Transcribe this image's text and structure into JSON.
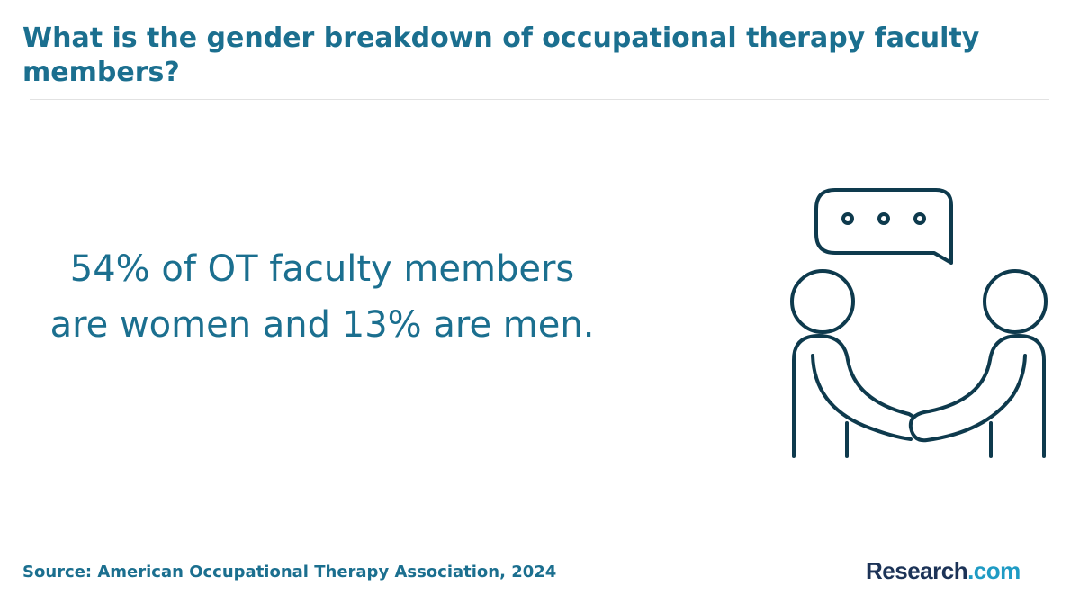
{
  "header": {
    "title": "What is the gender breakdown of occupational therapy faculty members?"
  },
  "statement": "54% of OT faculty members are women and 13% are men.",
  "footer": {
    "source": "Source: American Occupational Therapy Association, 2024",
    "logo": {
      "name": "Research",
      "suffix": ".com"
    }
  }
}
